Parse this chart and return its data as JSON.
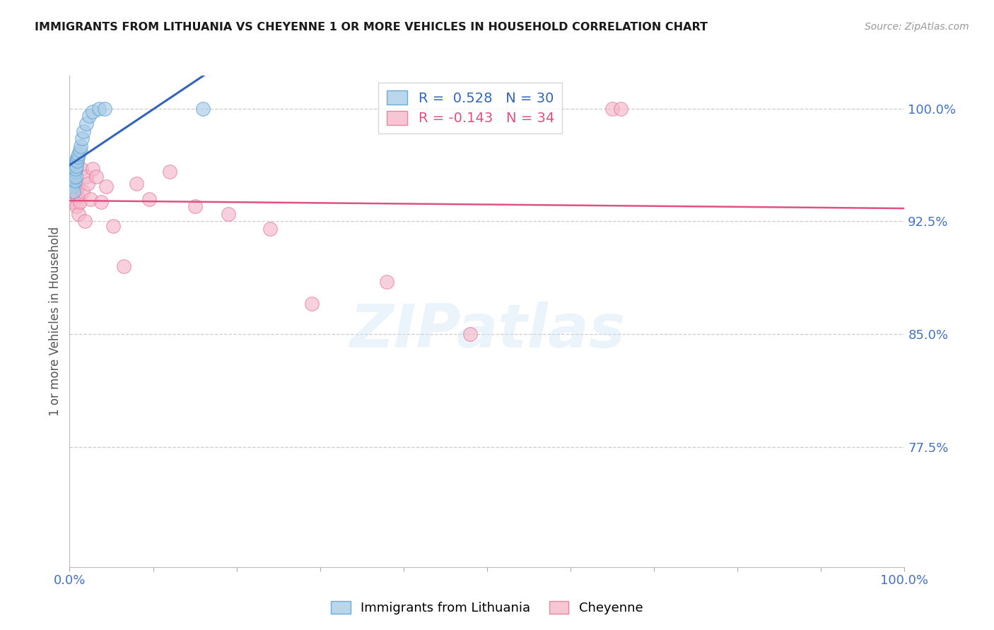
{
  "title": "IMMIGRANTS FROM LITHUANIA VS CHEYENNE 1 OR MORE VEHICLES IN HOUSEHOLD CORRELATION CHART",
  "source": "Source: ZipAtlas.com",
  "ylabel": "1 or more Vehicles in Household",
  "ytick_labels": [
    "77.5%",
    "85.0%",
    "92.5%",
    "100.0%"
  ],
  "ytick_values": [
    0.775,
    0.85,
    0.925,
    1.0
  ],
  "ymin": 0.695,
  "ymax": 1.022,
  "xmin": 0.0,
  "xmax": 1.0,
  "blue_R": 0.528,
  "blue_N": 30,
  "pink_R": -0.143,
  "pink_N": 34,
  "blue_color": "#a8cce8",
  "pink_color": "#f5b8cb",
  "blue_edge_color": "#5599cc",
  "pink_edge_color": "#e07090",
  "blue_line_color": "#3366bb",
  "pink_line_color": "#e05080",
  "legend_blue_label": "Immigrants from Lithuania",
  "legend_pink_label": "Cheyenne",
  "blue_dots_x": [
    0.001,
    0.002,
    0.002,
    0.003,
    0.003,
    0.003,
    0.004,
    0.004,
    0.005,
    0.005,
    0.005,
    0.006,
    0.006,
    0.007,
    0.007,
    0.008,
    0.008,
    0.009,
    0.01,
    0.011,
    0.012,
    0.013,
    0.015,
    0.017,
    0.02,
    0.023,
    0.028,
    0.035,
    0.042,
    0.16
  ],
  "blue_dots_y": [
    0.952,
    0.958,
    0.962,
    0.95,
    0.955,
    0.96,
    0.948,
    0.953,
    0.945,
    0.955,
    0.96,
    0.952,
    0.958,
    0.955,
    0.96,
    0.962,
    0.966,
    0.965,
    0.968,
    0.97,
    0.972,
    0.975,
    0.98,
    0.985,
    0.99,
    0.995,
    0.998,
    1.0,
    1.0,
    1.0
  ],
  "pink_dots_x": [
    0.002,
    0.003,
    0.004,
    0.005,
    0.006,
    0.007,
    0.008,
    0.009,
    0.01,
    0.011,
    0.012,
    0.014,
    0.016,
    0.018,
    0.02,
    0.022,
    0.025,
    0.028,
    0.032,
    0.038,
    0.044,
    0.052,
    0.065,
    0.08,
    0.095,
    0.12,
    0.15,
    0.19,
    0.24,
    0.29,
    0.38,
    0.48,
    0.65,
    0.66
  ],
  "pink_dots_y": [
    0.955,
    0.94,
    0.948,
    0.938,
    0.945,
    0.95,
    0.935,
    0.942,
    0.948,
    0.93,
    0.938,
    0.96,
    0.945,
    0.925,
    0.955,
    0.95,
    0.94,
    0.96,
    0.955,
    0.938,
    0.948,
    0.922,
    0.895,
    0.95,
    0.94,
    0.958,
    0.935,
    0.93,
    0.92,
    0.87,
    0.885,
    0.85,
    1.0,
    1.0
  ],
  "watermark_text": "ZIPatlas",
  "background_color": "#ffffff",
  "grid_color": "#cccccc",
  "title_color": "#1a1a1a",
  "axis_color": "#4472c4",
  "ylabel_color": "#555555"
}
